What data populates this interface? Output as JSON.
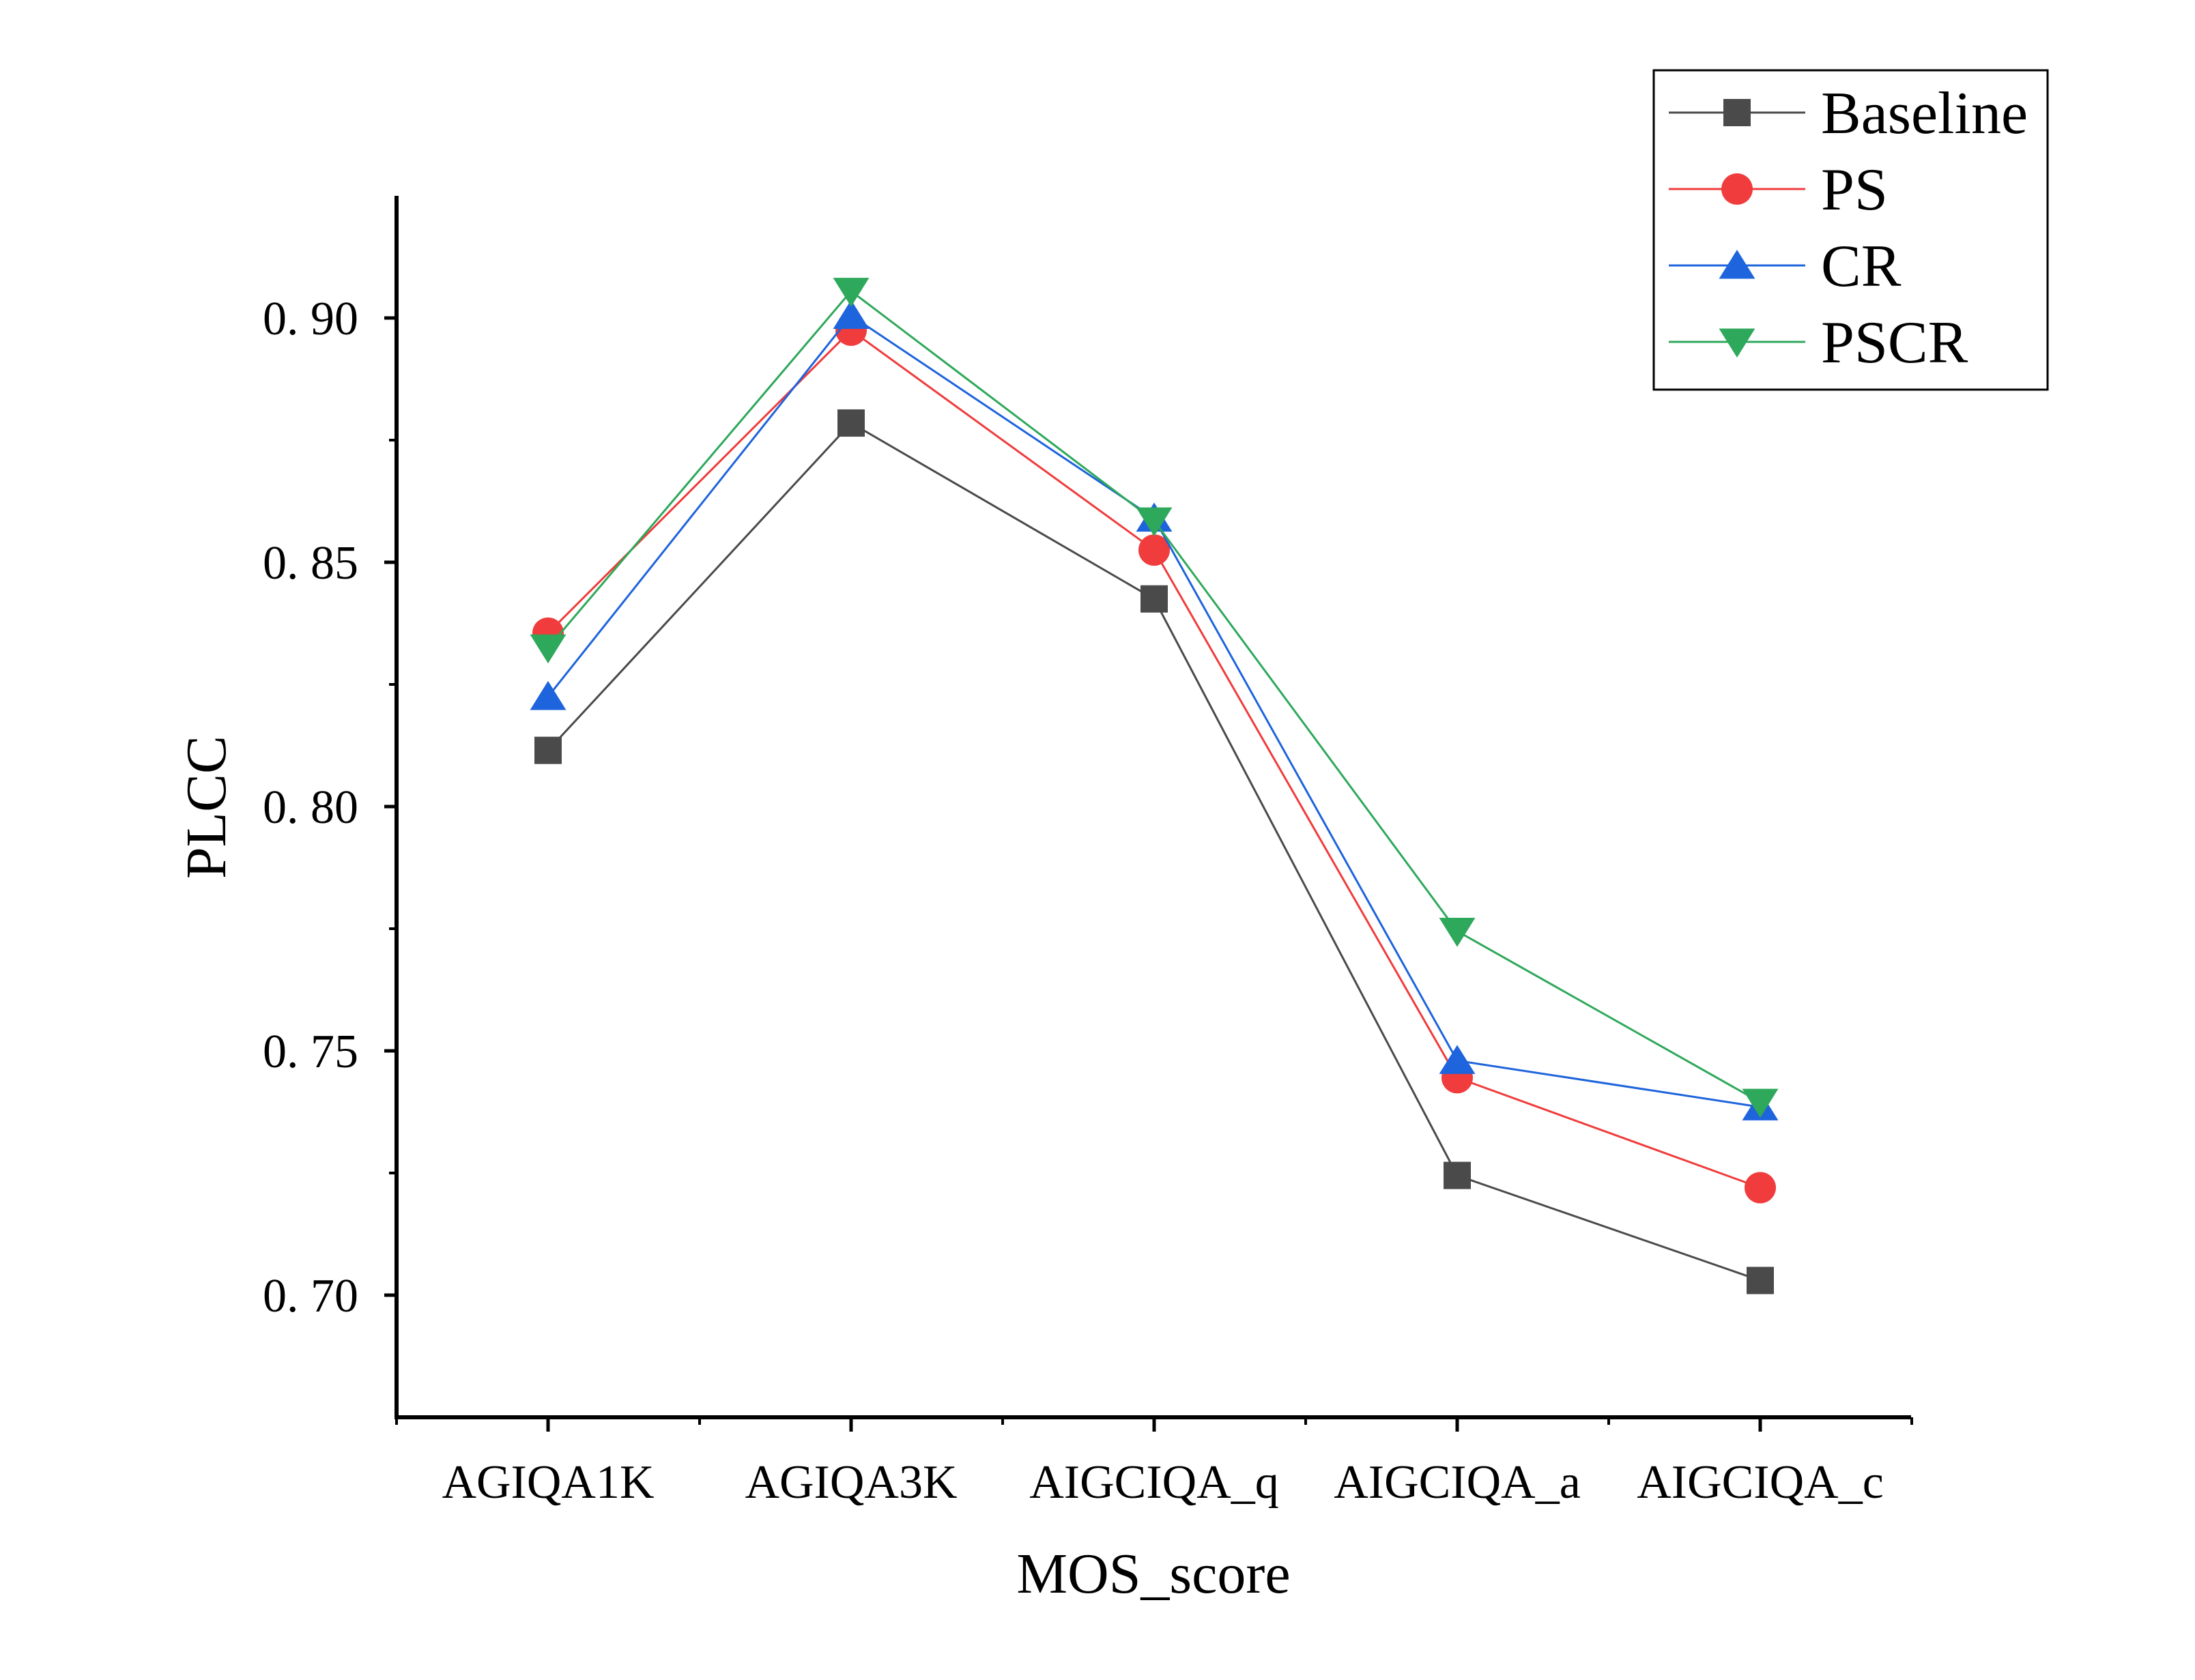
{
  "chart_data": {
    "type": "line",
    "title": "",
    "xlabel": "MOS_score",
    "ylabel": "PLCC",
    "categories": [
      "AGIQA1K",
      "AGIQA3K",
      "AIGCIQA_q",
      "AIGCIQA_a",
      "AIGCIQA_c"
    ],
    "ylim": [
      0.675,
      0.925
    ],
    "yticks": [
      0.7,
      0.75,
      0.8,
      0.85,
      0.9
    ],
    "ytick_labels": [
      "0. 70",
      "0. 75",
      "0. 80",
      "0. 85",
      "0. 90"
    ],
    "grid": false,
    "legend_position": "top-right",
    "series": [
      {
        "name": "Baseline",
        "marker": "square",
        "color": "#4a4a4a",
        "values": [
          0.8115,
          0.8785,
          0.8425,
          0.7245,
          0.703
        ]
      },
      {
        "name": "PS",
        "marker": "circle",
        "color": "#f03c3c",
        "values": [
          0.8355,
          0.8975,
          0.8525,
          0.7445,
          0.722
        ]
      },
      {
        "name": "CR",
        "marker": "triangle-up",
        "color": "#1e64dc",
        "values": [
          0.8225,
          0.9005,
          0.859,
          0.748,
          0.7385
        ]
      },
      {
        "name": "PSCR",
        "marker": "triangle-down",
        "color": "#2ea85a",
        "values": [
          0.8325,
          0.9055,
          0.8585,
          0.7745,
          0.7395
        ]
      }
    ]
  }
}
